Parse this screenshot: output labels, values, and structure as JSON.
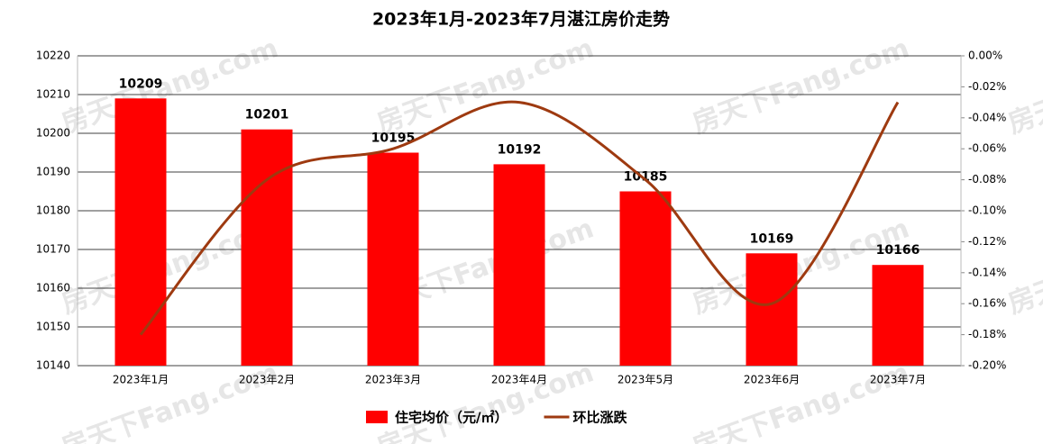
{
  "chart_data": {
    "type": "bar",
    "title": "2023年1月-2023年7月湛江房价走势",
    "watermark": "房天下Fang.com",
    "categories": [
      "2023年1月",
      "2023年2月",
      "2023年3月",
      "2023年4月",
      "2023年5月",
      "2023年6月",
      "2023年7月"
    ],
    "series": [
      {
        "name": "住宅均价（元/㎡）",
        "type": "bar",
        "color": "#ff0000",
        "values": [
          10209,
          10201,
          10195,
          10192,
          10185,
          10169,
          10166
        ]
      },
      {
        "name": "环比涨跌",
        "type": "line",
        "axis": "y2",
        "color": "#9e3a10",
        "values": [
          -0.18,
          -0.08,
          -0.06,
          -0.03,
          -0.08,
          -0.16,
          -0.03
        ]
      }
    ],
    "ylim": [
      10140,
      10220
    ],
    "yticks": [
      10140,
      10150,
      10160,
      10170,
      10180,
      10190,
      10200,
      10210,
      10220
    ],
    "y2lim": [
      -0.2,
      0
    ],
    "y2ticks": [
      {
        "value": -0.2,
        "label": "-0.20%"
      },
      {
        "value": -0.18,
        "label": "-0.18%"
      },
      {
        "value": -0.16,
        "label": "-0.16%"
      },
      {
        "value": -0.14,
        "label": "-0.14%"
      },
      {
        "value": -0.12,
        "label": "-0.12%"
      },
      {
        "value": -0.1,
        "label": "-0.10%"
      },
      {
        "value": -0.08,
        "label": "-0.08%"
      },
      {
        "value": -0.06,
        "label": "-0.06%"
      },
      {
        "value": -0.04,
        "label": "-0.04%"
      },
      {
        "value": -0.02,
        "label": "-0.02%"
      },
      {
        "value": 0,
        "label": "0.00%"
      }
    ],
    "grid": true
  }
}
